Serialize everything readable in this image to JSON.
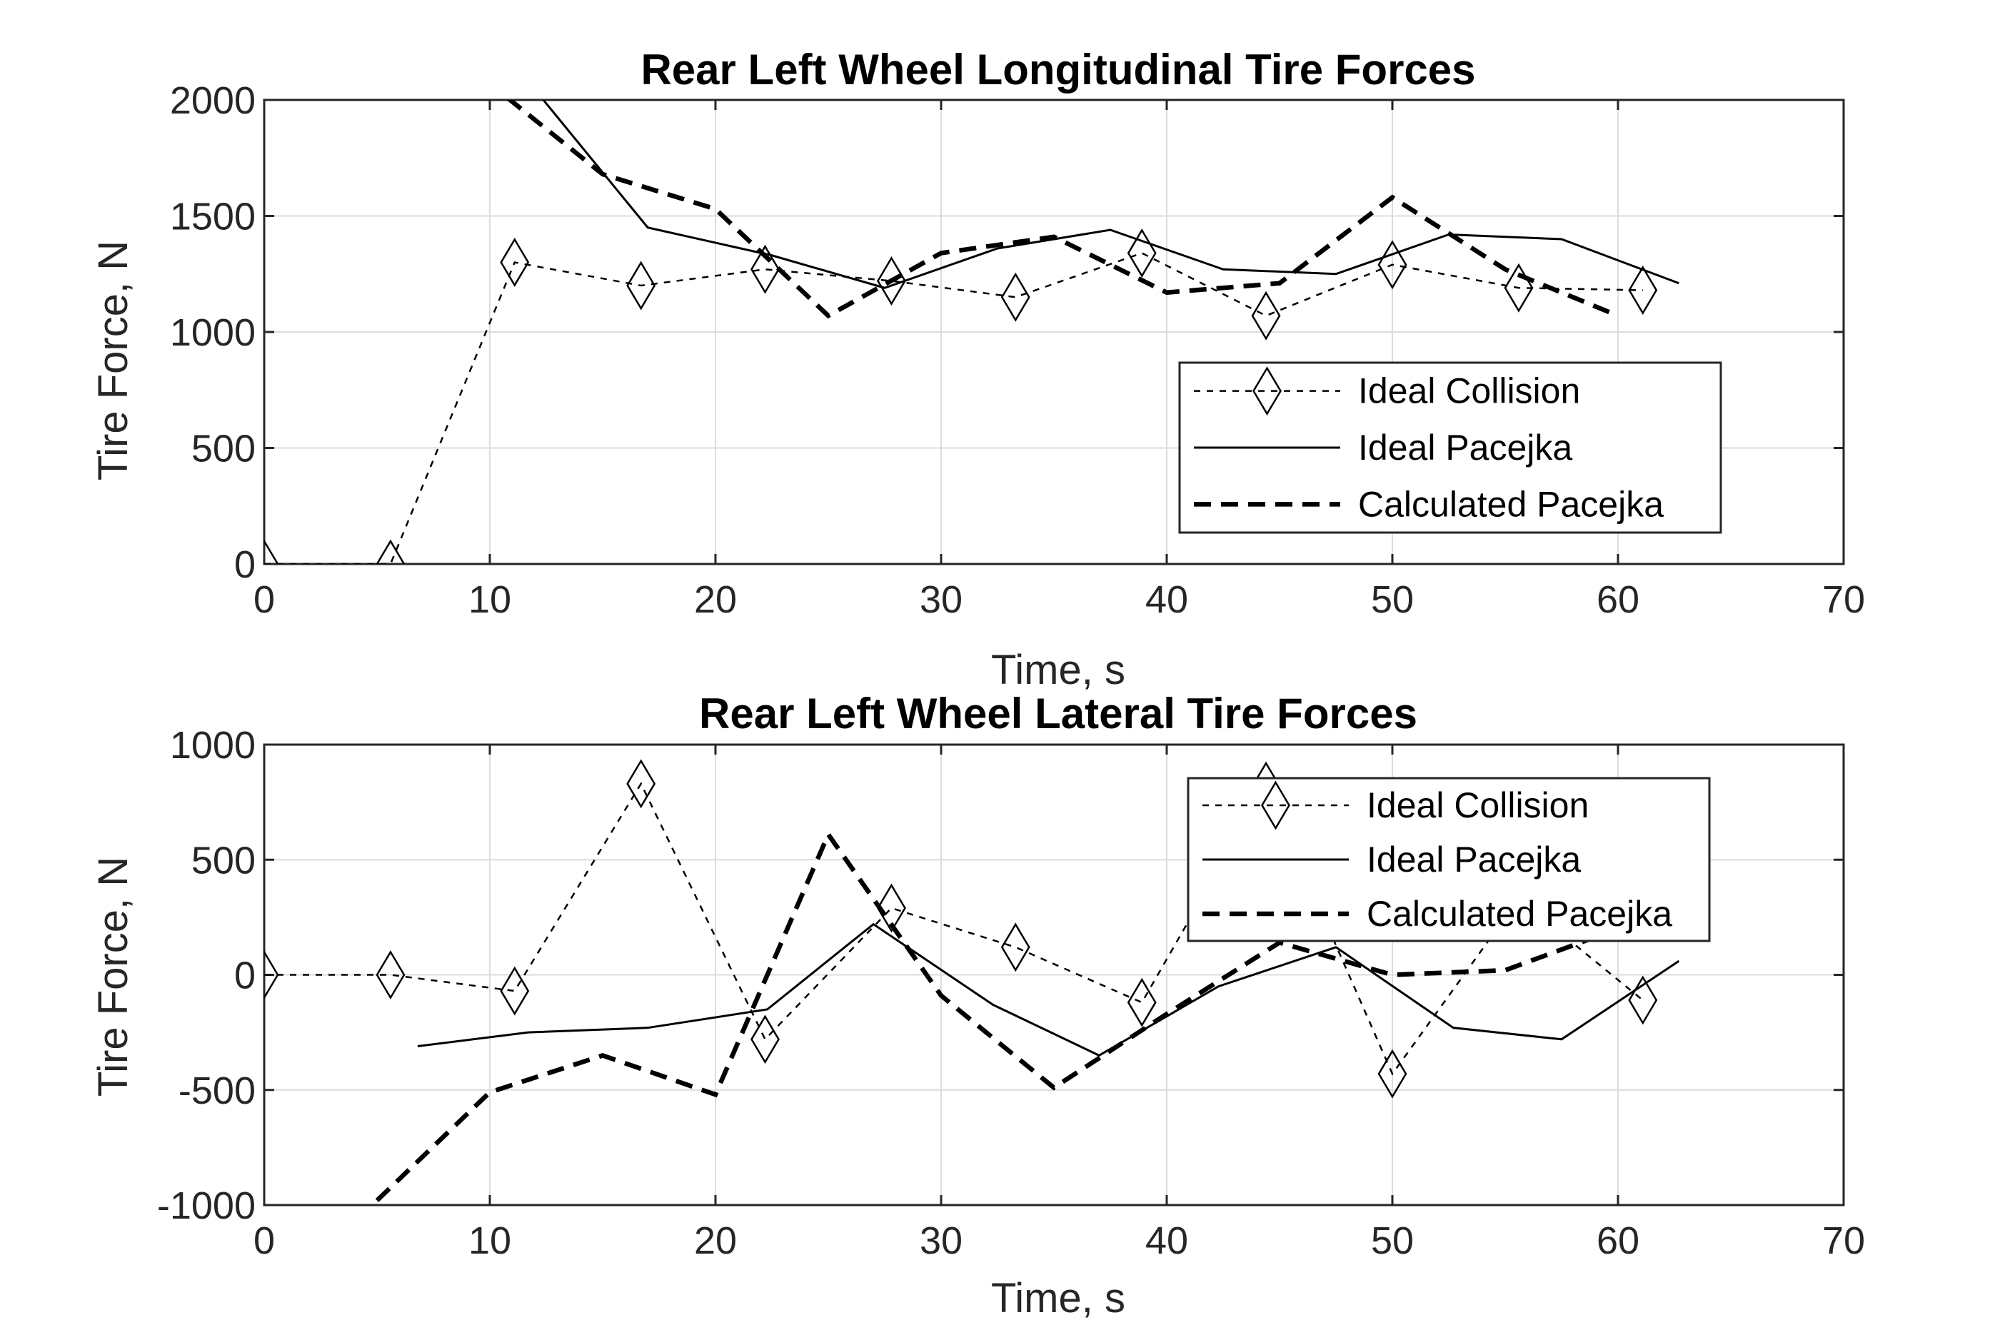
{
  "chart_data": [
    {
      "type": "line",
      "title": "Rear Left Wheel Longitudinal Tire Forces",
      "xlabel": "Time, s",
      "ylabel": "Tire Force, N",
      "xlim": [
        0,
        70
      ],
      "ylim": [
        0,
        2000
      ],
      "xticks": [
        "0",
        "10",
        "20",
        "30",
        "40",
        "50",
        "60",
        "70"
      ],
      "yticks": [
        "0",
        "500",
        "1000",
        "1500",
        "2000"
      ],
      "grid": true,
      "legend": "bottom-right",
      "series": [
        {
          "name": "Ideal Collision",
          "style": "dotted-diamond",
          "x": [
            0,
            5.6,
            11.1,
            16.7,
            22.2,
            27.8,
            33.3,
            38.9,
            44.4,
            50.0,
            55.6,
            61.1
          ],
          "y": [
            0,
            0,
            1300,
            1200,
            1270,
            1220,
            1150,
            1340,
            1070,
            1290,
            1190,
            1180
          ]
        },
        {
          "name": "Ideal Pacejka",
          "style": "solid",
          "x": [
            5.0,
            11.7,
            17.0,
            22.5,
            27.5,
            32.5,
            37.5,
            42.5,
            47.5,
            52.5,
            57.5,
            62.7
          ],
          "y": [
            2050,
            2080,
            1450,
            1330,
            1190,
            1360,
            1440,
            1270,
            1250,
            1420,
            1400,
            1210
          ]
        },
        {
          "name": "Calculated Pacejka",
          "style": "dashed",
          "x": [
            5,
            10,
            15,
            20,
            25,
            30,
            35,
            40,
            45,
            50,
            55,
            60
          ],
          "y": [
            2050,
            2070,
            1680,
            1530,
            1070,
            1340,
            1410,
            1170,
            1210,
            1580,
            1270,
            1070
          ]
        }
      ]
    },
    {
      "type": "line",
      "title": "Rear Left Wheel Lateral Tire Forces",
      "xlabel": "Time, s",
      "ylabel": "Tire Force, N",
      "xlim": [
        0,
        70
      ],
      "ylim": [
        -1000,
        1000
      ],
      "xticks": [
        "0",
        "10",
        "20",
        "30",
        "40",
        "50",
        "60",
        "70"
      ],
      "yticks": [
        "-1000",
        "-500",
        "0",
        "500",
        "1000"
      ],
      "grid": true,
      "legend": "top-right",
      "series": [
        {
          "name": "Ideal Collision",
          "style": "dotted-diamond",
          "x": [
            0,
            5.6,
            11.1,
            16.7,
            22.2,
            27.8,
            33.3,
            38.9,
            44.4,
            50.0,
            55.6,
            61.1
          ],
          "y": [
            0,
            0,
            -70,
            830,
            -280,
            290,
            120,
            -120,
            820,
            -430,
            330,
            -110
          ]
        },
        {
          "name": "Ideal Pacejka",
          "style": "solid",
          "x": [
            6.8,
            11.7,
            17.0,
            22.3,
            27.0,
            32.3,
            37.0,
            42.3,
            47.5,
            52.7,
            57.5,
            62.7
          ],
          "y": [
            -310,
            -250,
            -230,
            -150,
            220,
            -130,
            -350,
            -50,
            120,
            -230,
            -280,
            60
          ]
        },
        {
          "name": "Calculated Pacejka",
          "style": "dashed",
          "x": [
            5,
            10,
            15,
            20,
            25,
            30,
            35,
            40,
            45,
            50,
            55,
            60
          ],
          "y": [
            -980,
            -510,
            -350,
            -520,
            610,
            -90,
            -490,
            -170,
            140,
            0,
            20,
            200
          ]
        }
      ]
    }
  ]
}
